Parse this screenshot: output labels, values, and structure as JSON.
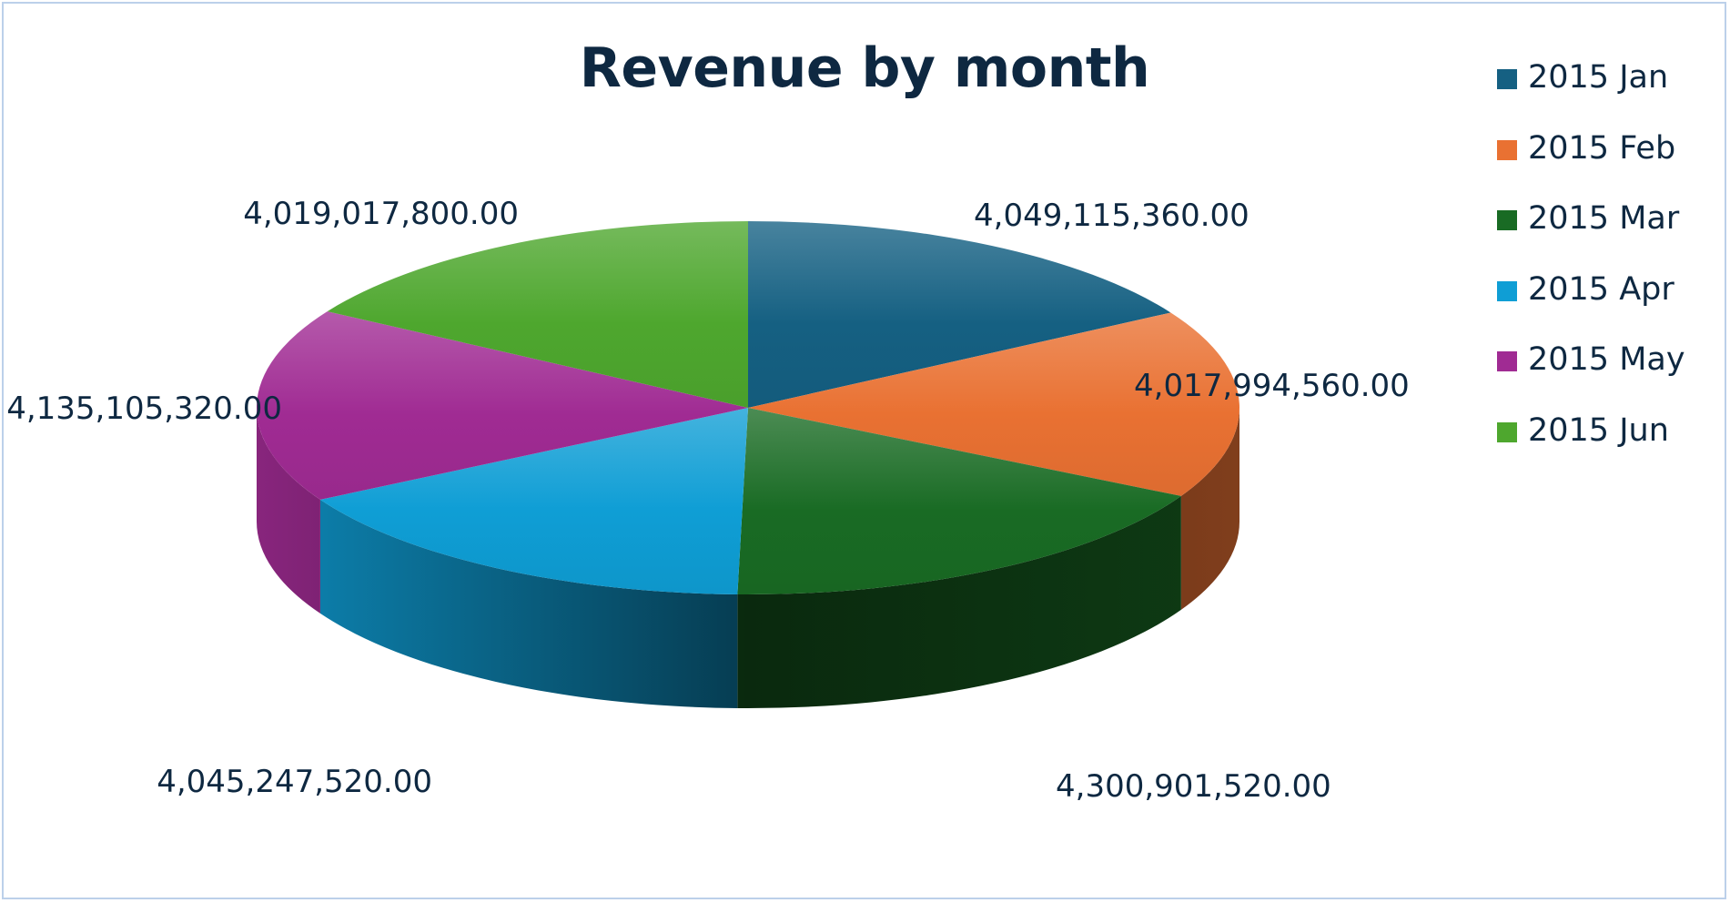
{
  "chart_data": {
    "type": "pie",
    "style": "3d-pie",
    "title": "Revenue by month",
    "categories": [
      "2015 Jan",
      "2015 Feb",
      "2015 Mar",
      "2015 Apr",
      "2015 May",
      "2015 Jun"
    ],
    "values": [
      4049115360.0,
      4017994560.0,
      4300901520.0,
      4045247520.0,
      4135105320.0,
      4019017800.0
    ],
    "data_labels": [
      "4,049,115,360.00",
      "4,017,994,560.00",
      "4,300,901,520.00",
      "4,045,247,520.00",
      "4,135,105,320.00",
      "4,019,017,800.00"
    ],
    "colors": [
      "#156082",
      "#e97132",
      "#196b24",
      "#0f9ed5",
      "#a02b93",
      "#4ea72e"
    ],
    "legend_position": "top-right",
    "start_angle_degrees": 0,
    "direction": "clockwise"
  }
}
